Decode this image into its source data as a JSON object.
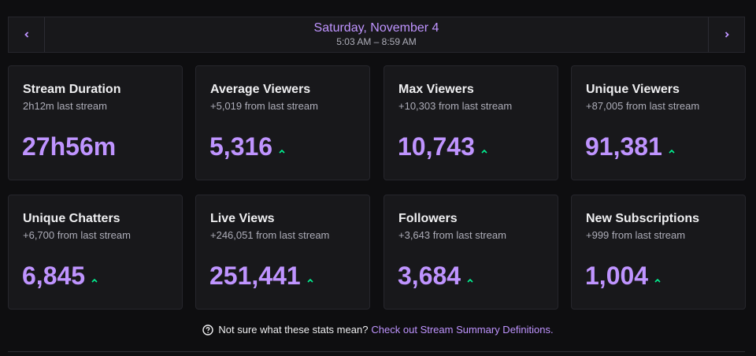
{
  "date_nav": {
    "title": "Saturday, November 4",
    "range": "5:03 AM – 8:59 AM"
  },
  "accent_color": "#bf94ff",
  "trend_color": "#00f593",
  "stats": [
    {
      "title": "Stream Duration",
      "sub": "2h12m last stream",
      "value": "27h56m",
      "trend": "none"
    },
    {
      "title": "Average Viewers",
      "sub": "+5,019 from last stream",
      "value": "5,316",
      "trend": "up"
    },
    {
      "title": "Max Viewers",
      "sub": "+10,303 from last stream",
      "value": "10,743",
      "trend": "up"
    },
    {
      "title": "Unique Viewers",
      "sub": "+87,005 from last stream",
      "value": "91,381",
      "trend": "up"
    },
    {
      "title": "Unique Chatters",
      "sub": "+6,700 from last stream",
      "value": "6,845",
      "trend": "up"
    },
    {
      "title": "Live Views",
      "sub": "+246,051 from last stream",
      "value": "251,441",
      "trend": "up"
    },
    {
      "title": "Followers",
      "sub": "+3,643 from last stream",
      "value": "3,684",
      "trend": "up"
    },
    {
      "title": "New Subscriptions",
      "sub": "+999 from last stream",
      "value": "1,004",
      "trend": "up"
    }
  ],
  "footer": {
    "question": "Not sure what these stats mean?",
    "link": "Check out Stream Summary Definitions."
  }
}
